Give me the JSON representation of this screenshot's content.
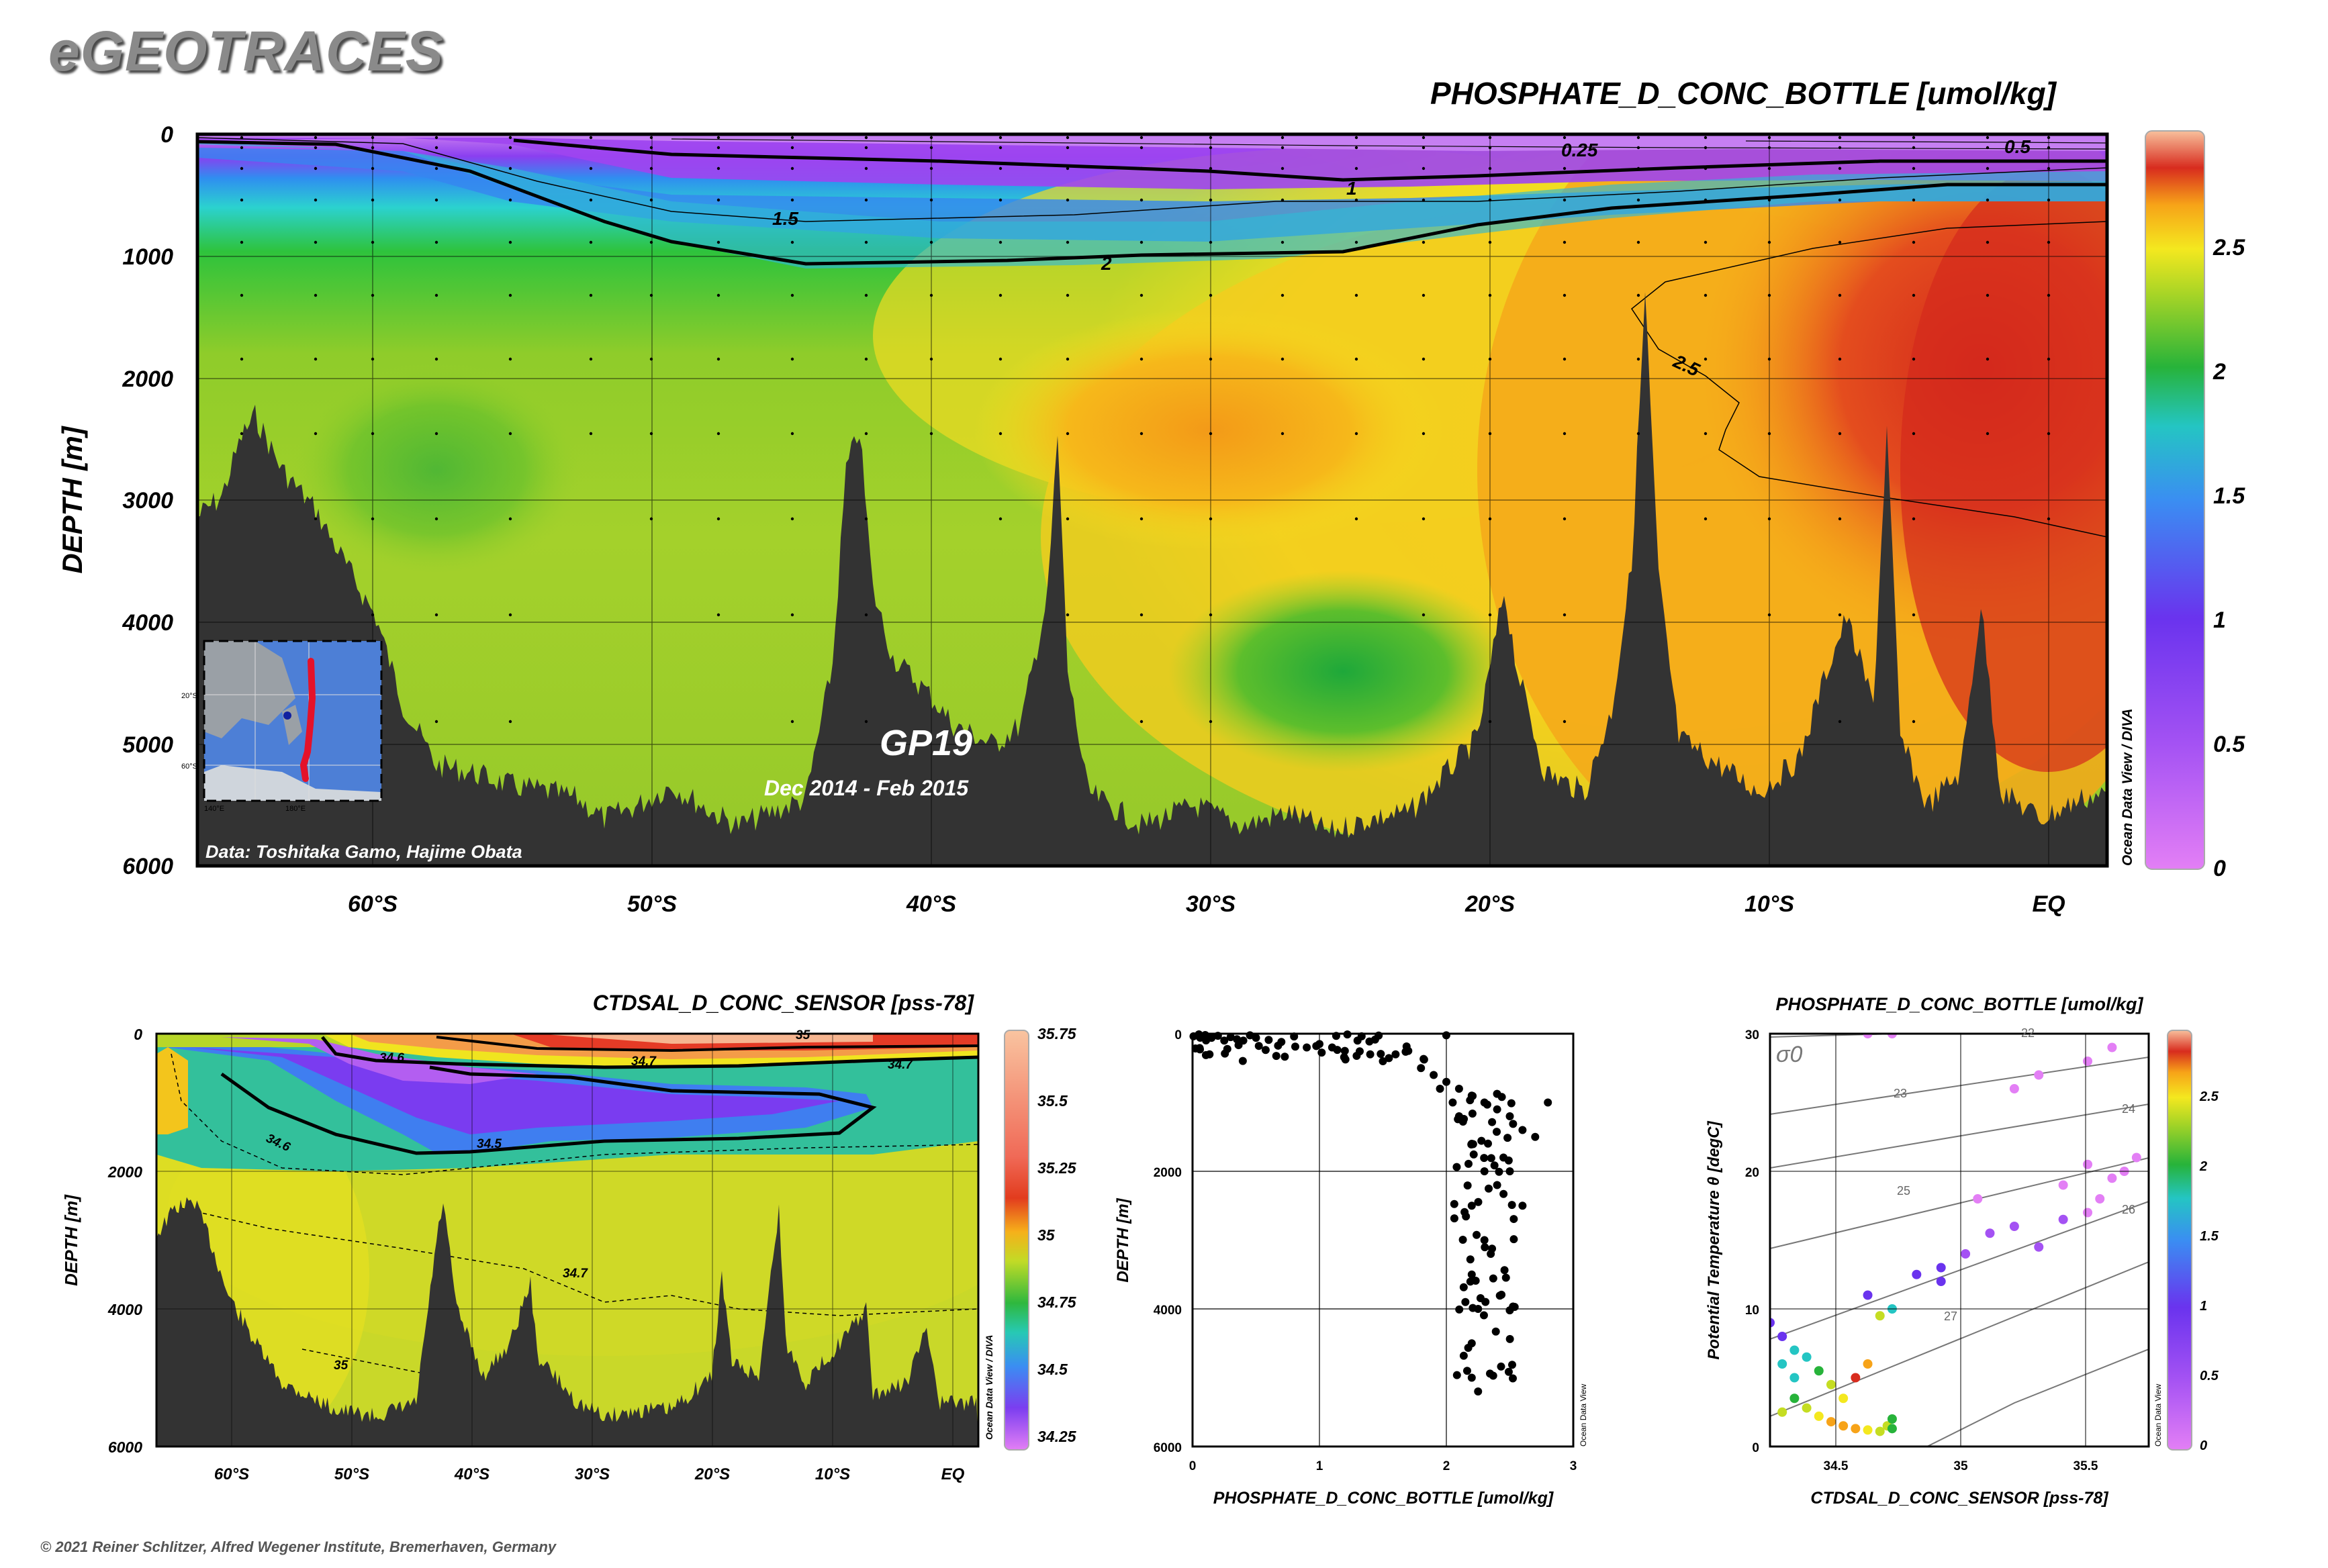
{
  "logo": "eGEOTRACES",
  "copyright": "© 2021 Reiner Schlitzer, Alfred Wegener Institute, Bremerhaven, Germany",
  "main_section": {
    "title": "PHOSPHATE_D_CONC_BOTTLE [umol/kg]",
    "ylabel": "DEPTH [m]",
    "y_ticks": [
      "0",
      "1000",
      "2000",
      "3000",
      "4000",
      "5000",
      "6000"
    ],
    "x_ticks": [
      "60°S",
      "50°S",
      "40°S",
      "30°S",
      "20°S",
      "10°S",
      "EQ"
    ],
    "colorbar_ticks": [
      "2.5",
      "2",
      "1.5",
      "1",
      "0.5",
      "0"
    ],
    "contour_labels": [
      "0.25",
      "0.5",
      "1",
      "1.5",
      "2",
      "2.5"
    ],
    "cruise": "GP19",
    "dates": "Dec 2014 - Feb 2015",
    "data_credit": "Data: Toshitaka Gamo, Hajime Obata",
    "odv_credit": "Ocean Data View / DIVA",
    "inset_labels": [
      "20°S",
      "60°S",
      "140°E",
      "180°E"
    ]
  },
  "salinity_section": {
    "title": "CTDSAL_D_CONC_SENSOR [pss-78]",
    "ylabel": "DEPTH [m]",
    "y_ticks": [
      "0",
      "2000",
      "4000",
      "6000"
    ],
    "x_ticks": [
      "60°S",
      "50°S",
      "40°S",
      "30°S",
      "20°S",
      "10°S",
      "EQ"
    ],
    "colorbar_ticks": [
      "35.75",
      "35.5",
      "35.25",
      "35",
      "34.75",
      "34.5",
      "34.25"
    ],
    "contour_labels": [
      "34.6",
      "35",
      "34.7",
      "34.6",
      "34.5",
      "34.7",
      "34.7",
      "35"
    ],
    "odv_credit": "Ocean Data View / DIVA"
  },
  "profile_panel": {
    "xlabel": "PHOSPHATE_D_CONC_BOTTLE [umol/kg]",
    "ylabel": "DEPTH [m]",
    "x_ticks": [
      "0",
      "1",
      "2",
      "3"
    ],
    "y_ticks": [
      "0",
      "2000",
      "4000",
      "6000"
    ],
    "odv_credit": "Ocean Data View"
  },
  "ts_panel": {
    "title": "PHOSPHATE_D_CONC_BOTTLE [umol/kg]",
    "xlabel": "CTDSAL_D_CONC_SENSOR [pss-78]",
    "ylabel": "Potential Temperature θ [degC]",
    "x_ticks": [
      "34.5",
      "35",
      "35.5"
    ],
    "y_ticks": [
      "0",
      "10",
      "20",
      "30"
    ],
    "sigma_label": "σ0",
    "isopycnal_labels": [
      "22",
      "23",
      "24",
      "25",
      "26",
      "27"
    ],
    "colorbar_ticks": [
      "2.5",
      "2",
      "1.5",
      "1",
      "0.5",
      "0"
    ],
    "odv_credit": "Ocean Data View"
  },
  "chart_data": [
    {
      "type": "heatmap",
      "title": "PHOSPHATE_D_CONC_BOTTLE [umol/kg]",
      "x": [
        -60,
        -50,
        -40,
        -30,
        -20,
        -10,
        0
      ],
      "xlabel": "",
      "ylabel": "DEPTH [m]",
      "xlim": [
        -66.5,
        2
      ],
      "ylim": [
        6000,
        0
      ],
      "colorbar_range": [
        0,
        2.9
      ],
      "contours": [
        0.25,
        0.5,
        1,
        1.5,
        2,
        2.5
      ],
      "colors": [
        "#e080f0",
        "#7a2ef0",
        "#2bd5e6",
        "#26b339",
        "#f0ea1e",
        "#f7b114",
        "#d42a1e",
        "#f7b891"
      ]
    },
    {
      "type": "heatmap",
      "title": "CTDSAL_D_CONC_SENSOR [pss-78]",
      "x": [
        -60,
        -50,
        -40,
        -30,
        -20,
        -10,
        0
      ],
      "ylabel": "DEPTH [m]",
      "ylim": [
        6000,
        0
      ],
      "colorbar_range": [
        34.2,
        35.75
      ],
      "contours": [
        34.5,
        34.6,
        34.7,
        35
      ]
    },
    {
      "type": "scatter",
      "xlabel": "PHOSPHATE_D_CONC_BOTTLE [umol/kg]",
      "ylabel": "DEPTH [m]",
      "xlim": [
        0,
        3
      ],
      "ylim": [
        6000,
        0
      ],
      "points": [
        [
          0.05,
          10
        ],
        [
          0.1,
          20
        ],
        [
          0.2,
          30
        ],
        [
          0.3,
          50
        ],
        [
          0.35,
          80
        ],
        [
          0.4,
          100
        ],
        [
          0.5,
          60
        ],
        [
          0.6,
          90
        ],
        [
          0.7,
          120
        ],
        [
          0.8,
          40
        ],
        [
          1.0,
          150
        ],
        [
          1.1,
          200
        ],
        [
          1.2,
          250
        ],
        [
          1.3,
          100
        ],
        [
          1.4,
          300
        ],
        [
          1.5,
          400
        ],
        [
          1.6,
          300
        ],
        [
          1.7,
          250
        ],
        [
          1.8,
          500
        ],
        [
          1.9,
          600
        ],
        [
          2.0,
          700
        ],
        [
          2.1,
          800
        ],
        [
          2.2,
          900
        ],
        [
          2.3,
          1000
        ],
        [
          2.4,
          1100
        ],
        [
          2.5,
          1200
        ],
        [
          2.6,
          1400
        ],
        [
          2.7,
          1500
        ],
        [
          2.8,
          1000
        ],
        [
          2.2,
          1600
        ],
        [
          2.3,
          2000
        ],
        [
          2.4,
          2200
        ],
        [
          2.2,
          2500
        ],
        [
          2.3,
          3000
        ],
        [
          2.2,
          3500
        ],
        [
          2.25,
          4000
        ],
        [
          2.2,
          4500
        ],
        [
          2.2,
          5000
        ],
        [
          2.25,
          5200
        ],
        [
          2.5,
          2000
        ],
        [
          2.6,
          2500
        ],
        [
          2.1,
          1200
        ],
        [
          2.45,
          1800
        ],
        [
          2.35,
          3200
        ],
        [
          2.15,
          3900
        ],
        [
          2.05,
          1000
        ],
        [
          1.95,
          800
        ],
        [
          0.9,
          200
        ],
        [
          0.25,
          100
        ],
        [
          0.15,
          60
        ]
      ]
    },
    {
      "type": "scatter",
      "xlabel": "CTDSAL_D_CONC_SENSOR [pss-78]",
      "ylabel": "Potential Temperature θ [degC]",
      "xlim": [
        34.2,
        35.75
      ],
      "ylim": [
        0,
        30
      ],
      "points": [
        [
          34.25,
          2.5,
          2.2
        ],
        [
          34.3,
          3.5,
          2.1
        ],
        [
          34.35,
          2.8,
          2.3
        ],
        [
          34.4,
          2.2,
          2.4
        ],
        [
          34.45,
          1.8,
          2.5
        ],
        [
          34.5,
          1.5,
          2.6
        ],
        [
          34.55,
          1.3,
          2.5
        ],
        [
          34.6,
          1.2,
          2.4
        ],
        [
          34.65,
          1.1,
          2.3
        ],
        [
          34.68,
          1.5,
          2.2
        ],
        [
          34.7,
          1.3,
          2.1
        ],
        [
          34.7,
          2.0,
          2.0
        ],
        [
          34.3,
          5.0,
          1.9
        ],
        [
          34.25,
          6.0,
          1.8
        ],
        [
          34.3,
          7.0,
          1.5
        ],
        [
          34.35,
          6.5,
          1.6
        ],
        [
          34.4,
          5.5,
          2.0
        ],
        [
          34.45,
          4.5,
          2.2
        ],
        [
          34.5,
          3.5,
          2.4
        ],
        [
          34.55,
          5.0,
          2.7
        ],
        [
          34.6,
          6.0,
          2.6
        ],
        [
          34.65,
          9.5,
          2.3
        ],
        [
          34.7,
          10.0,
          1.9
        ],
        [
          34.6,
          11.0,
          1.2
        ],
        [
          34.8,
          12.5,
          1.1
        ],
        [
          34.9,
          13.0,
          1.3
        ],
        [
          35.0,
          14.0,
          0.9
        ],
        [
          35.1,
          15.5,
          0.6
        ],
        [
          35.2,
          16.0,
          0.5
        ],
        [
          35.3,
          14.5,
          0.6
        ],
        [
          35.4,
          16.5,
          0.5
        ],
        [
          35.5,
          17.0,
          0.4
        ],
        [
          35.55,
          18.0,
          0.3
        ],
        [
          35.6,
          19.5,
          0.25
        ],
        [
          35.65,
          20.0,
          0.2
        ],
        [
          35.7,
          21.0,
          0.15
        ],
        [
          35.5,
          20.5,
          0.3
        ],
        [
          35.4,
          19.0,
          0.35
        ],
        [
          35.2,
          26.0,
          0.1
        ],
        [
          35.3,
          27.0,
          0.08
        ],
        [
          35.5,
          28.0,
          0.05
        ],
        [
          35.6,
          29.0,
          0.04
        ],
        [
          34.6,
          30.0,
          0.05
        ],
        [
          34.7,
          30.0,
          0.05
        ],
        [
          35.05,
          18.0,
          0.4
        ],
        [
          34.9,
          12.0,
          1.0
        ],
        [
          34.2,
          9.0,
          1.4
        ],
        [
          34.25,
          8.0,
          1.3
        ]
      ]
    }
  ]
}
